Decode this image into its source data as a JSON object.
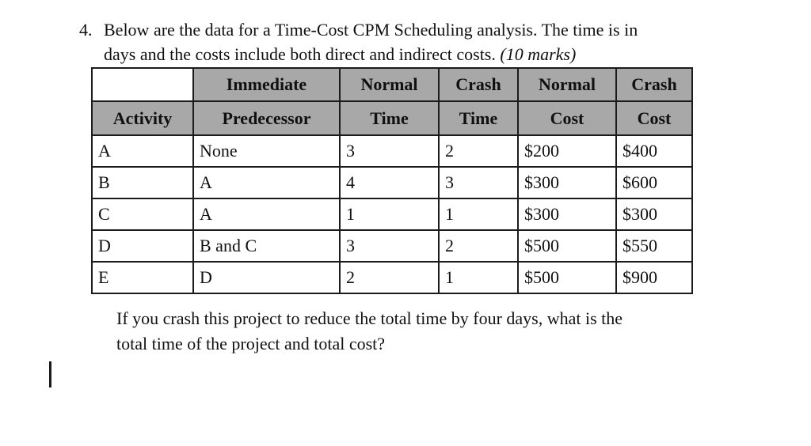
{
  "problem": {
    "number": "4.",
    "line1": "Below are the data for a Time-Cost CPM Scheduling analysis. The time is in",
    "line2": "days and the costs include both direct and indirect costs.",
    "marks": "(10 marks)"
  },
  "table": {
    "header_row1": [
      "Immediate",
      "Normal",
      "Crash",
      "Normal",
      "Crash"
    ],
    "header_row2": [
      "Activity",
      "Predecessor",
      "Time",
      "Time",
      "Cost",
      "Cost"
    ],
    "rows": [
      [
        "A",
        "None",
        "3",
        "2",
        "$200",
        "$400"
      ],
      [
        "B",
        "A",
        "4",
        "3",
        "$300",
        "$600"
      ],
      [
        "C",
        "A",
        "1",
        "1",
        "$300",
        "$300"
      ],
      [
        "D",
        "B and C",
        "3",
        "2",
        "$500",
        "$550"
      ],
      [
        "E",
        "D",
        "2",
        "1",
        "$500",
        "$900"
      ]
    ],
    "header_bg": "#a8a8a8",
    "border_color": "#1b1b1b"
  },
  "question": {
    "line1": "If you crash this project to reduce the total time by four days, what is the",
    "line2": "total time of the project and total cost?"
  }
}
